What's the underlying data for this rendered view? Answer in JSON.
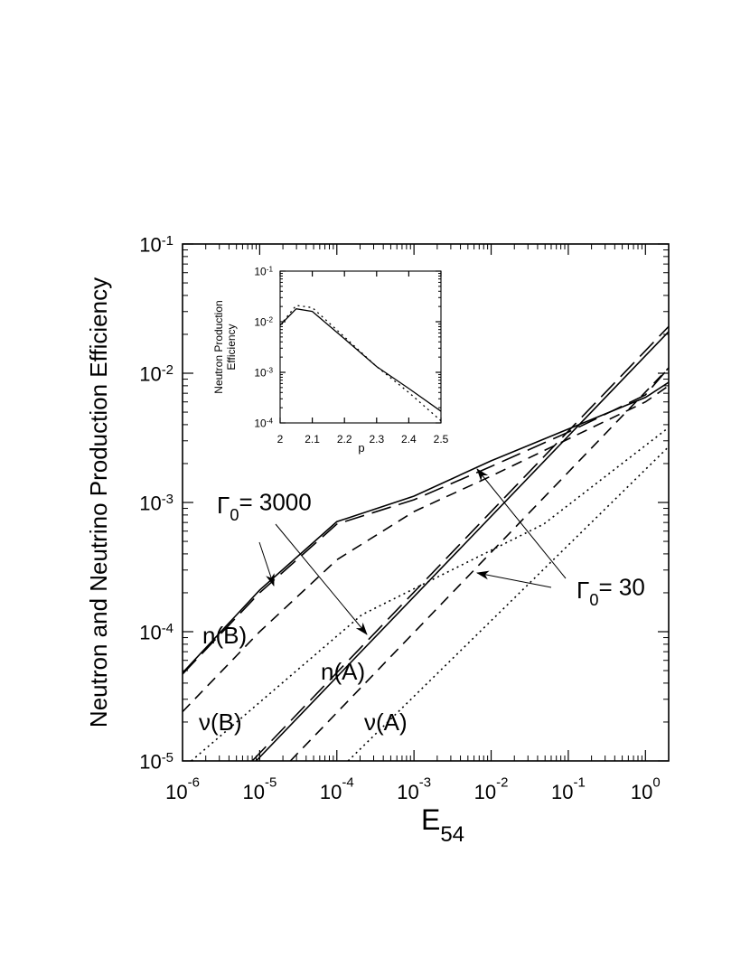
{
  "chart_data": [
    {
      "type": "line",
      "x_label": "E54",
      "y_label": "Neutron and Neutrino Production Efficiency",
      "xscale": "log",
      "yscale": "log",
      "xlim": [
        1e-06,
        2
      ],
      "ylim": [
        1e-05,
        0.1
      ],
      "xticks": [
        {
          "value": 1e-06,
          "label": "10-6"
        },
        {
          "value": 1e-05,
          "label": "10-5"
        },
        {
          "value": 0.0001,
          "label": "10-4"
        },
        {
          "value": 0.001,
          "label": "10-3"
        },
        {
          "value": 0.01,
          "label": "10-2"
        },
        {
          "value": 0.1,
          "label": "10-1"
        },
        {
          "value": 1,
          "label": "100"
        }
      ],
      "yticks": [
        {
          "value": 1e-05,
          "label": "10-5"
        },
        {
          "value": 0.0001,
          "label": "10-4"
        },
        {
          "value": 0.001,
          "label": "10-3"
        },
        {
          "value": 0.01,
          "label": "10-2"
        },
        {
          "value": 0.1,
          "label": "10-1"
        }
      ],
      "series": [
        {
          "color": "#000000",
          "style": "solid",
          "x": [
            1e-06,
            1e-05,
            0.0001,
            0.001,
            0.01,
            0.1,
            1,
            2
          ],
          "values": [
            4.8e-05,
            0.00021,
            0.00071,
            0.00112,
            0.0021,
            0.0037,
            0.0065,
            0.0085
          ]
        },
        {
          "color": "#000000",
          "style": "long-dash",
          "x": [
            1e-06,
            1e-05,
            0.0001,
            0.001,
            0.01,
            0.1,
            1,
            2
          ],
          "values": [
            4.7e-05,
            0.0002,
            0.00068,
            0.00105,
            0.0019,
            0.0035,
            0.0068,
            0.011
          ]
        },
        {
          "color": "#000000",
          "style": "dash",
          "x": [
            1e-06,
            1e-05,
            0.0001,
            0.001,
            0.01,
            0.1,
            1,
            2
          ],
          "values": [
            2.4e-05,
            0.0001,
            0.00036,
            0.00085,
            0.0016,
            0.0031,
            0.006,
            0.008
          ]
        },
        {
          "color": "#000000",
          "style": "solid",
          "x": [
            9e-06,
            2
          ],
          "values": [
            1e-05,
            0.021
          ]
        },
        {
          "color": "#000000",
          "style": "long-dash",
          "x": [
            8e-06,
            2
          ],
          "values": [
            1e-05,
            0.023
          ]
        },
        {
          "color": "#000000",
          "style": "dash",
          "x": [
            2.5e-05,
            2
          ],
          "values": [
            1e-05,
            0.011
          ]
        },
        {
          "color": "#000000",
          "style": "dot",
          "x": [
            1.3e-06,
            0.00021,
            0.048,
            2
          ],
          "values": [
            1e-05,
            0.000135,
            0.00068,
            0.0038
          ]
        },
        {
          "color": "#000000",
          "style": "dot",
          "x": [
            0.00014,
            2
          ],
          "values": [
            1e-05,
            0.0027
          ]
        }
      ],
      "annotations": [
        "Γ0= 3000",
        "Γ0= 30",
        "n(B)",
        "ν(B)",
        "n(A)",
        "ν(A)"
      ]
    },
    {
      "type": "line",
      "x_label": "p",
      "y_label": [
        "Neutron Production",
        "Efficiency"
      ],
      "xscale": "linear",
      "yscale": "log",
      "xlim": [
        2,
        2.5
      ],
      "ylim": [
        0.0001,
        0.1
      ],
      "xticks": [
        2,
        2.1,
        2.2,
        2.3,
        2.4,
        2.5
      ],
      "yticks": [
        {
          "value": 0.0001,
          "label": "10-4"
        },
        {
          "value": 0.001,
          "label": "10-3"
        },
        {
          "value": 0.01,
          "label": "10-2"
        },
        {
          "value": 0.1,
          "label": "10-1"
        }
      ],
      "series": [
        {
          "color": "#000000",
          "style": "solid",
          "x": [
            2,
            2.05,
            2.1,
            2.2,
            2.3,
            2.4,
            2.5
          ],
          "values": [
            0.0085,
            0.018,
            0.016,
            0.0046,
            0.0013,
            0.00048,
            0.00017
          ]
        },
        {
          "color": "#000000",
          "style": "dot",
          "x": [
            2,
            2.05,
            2.1,
            2.2,
            2.3,
            2.4,
            2.5
          ],
          "values": [
            0.0085,
            0.021,
            0.019,
            0.005,
            0.0013,
            0.0004,
            0.00011
          ]
        }
      ]
    }
  ]
}
